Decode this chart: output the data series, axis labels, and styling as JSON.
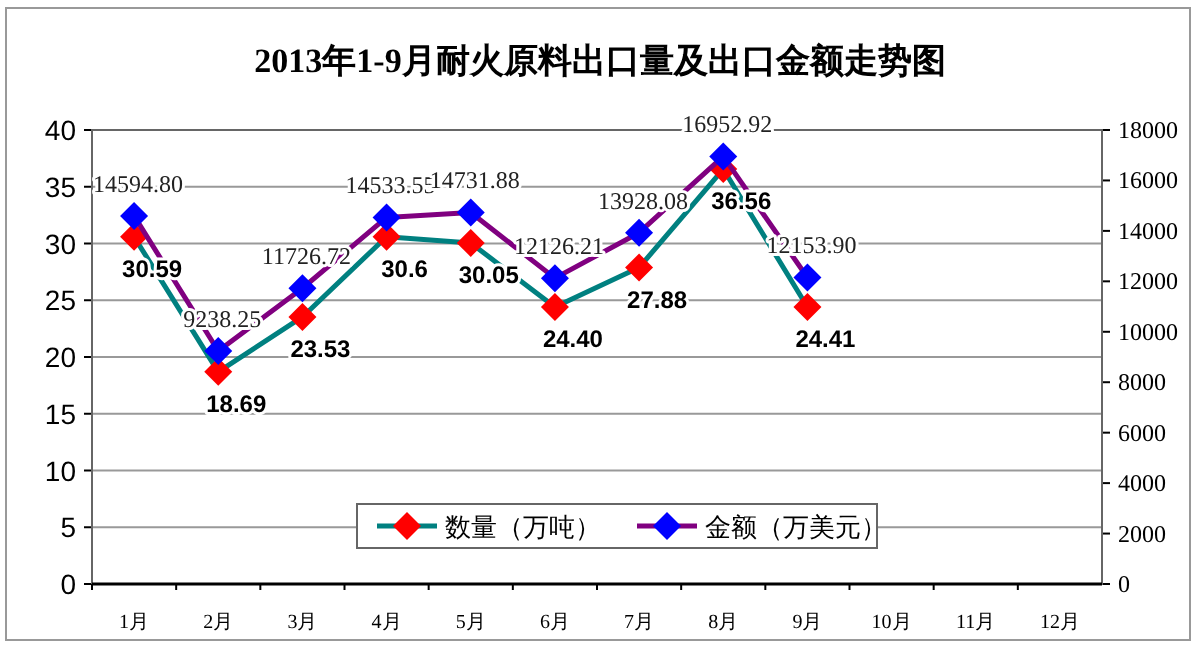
{
  "chart_data": {
    "type": "line",
    "title": "2013年1-9月耐火原料出口量及出口金额走势图",
    "categories": [
      "1月",
      "2月",
      "3月",
      "4月",
      "5月",
      "6月",
      "7月",
      "8月",
      "9月",
      "10月",
      "11月",
      "12月"
    ],
    "series": [
      {
        "name": "数量（万吨）",
        "color": "#008080",
        "colors": [
          "#ff0000",
          "#ff0000",
          "#ff0000",
          "#ff0000",
          "#ff0000",
          "#ff0000",
          "#ff0000",
          "#ff0000",
          "#ff0000",
          null,
          null,
          null
        ],
        "values": [
          30.59,
          18.69,
          23.53,
          30.6,
          30.05,
          24.4,
          27.88,
          36.56,
          24.41,
          null,
          null,
          null
        ],
        "value_labels": [
          "30.59",
          "18.69",
          "23.53",
          "30.6",
          "30.05",
          "24.40",
          "27.88",
          "36.56",
          "24.41",
          null,
          null,
          null
        ]
      },
      {
        "name": "金额（万美元）",
        "color": "#800080",
        "colors": [
          "#0000ff",
          "#0000ff",
          "#0000ff",
          "#0000ff",
          "#0000ff",
          "#0000ff",
          "#0000ff",
          "#0000ff",
          "#0000ff",
          null,
          null,
          null
        ],
        "axis": "y2",
        "values": [
          14594.8,
          9238.25,
          11726.72,
          14533.55,
          14731.88,
          12126.21,
          13928.08,
          16952.92,
          12153.9,
          null,
          null,
          null
        ],
        "value_labels": [
          "14594.80",
          "9238.25",
          "11726.72",
          "14533.55",
          "14731.88",
          "12126.21",
          "13928.08",
          "16952.92",
          "12153.90",
          null,
          null,
          null
        ]
      }
    ],
    "ylim": [
      0,
      40
    ],
    "yticks": [
      0,
      5,
      10,
      15,
      20,
      25,
      30,
      35,
      40
    ],
    "y2lim": [
      0,
      18000
    ],
    "y2ticks": [
      0,
      2000,
      4000,
      6000,
      8000,
      10000,
      12000,
      14000,
      16000,
      18000
    ],
    "grid": "y",
    "legend": "bottom",
    "marker": "diamond",
    "line_style": "solid"
  }
}
